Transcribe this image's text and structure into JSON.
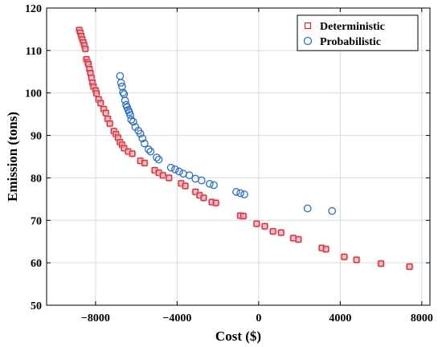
{
  "chart_data": {
    "type": "scatter",
    "title": "",
    "xlabel": "Cost ($)",
    "ylabel": "Emission (tons)",
    "xlim": [
      -10400,
      8400
    ],
    "ylim": [
      50,
      120
    ],
    "xticks": [
      -8000,
      -4000,
      0,
      4000,
      8000
    ],
    "xtick_labels": [
      "−8000",
      "−4000",
      "0",
      "4000",
      "8000"
    ],
    "yticks": [
      50,
      60,
      70,
      80,
      90,
      100,
      110,
      120
    ],
    "ytick_labels": [
      "50",
      "60",
      "70",
      "80",
      "90",
      "100",
      "110",
      "120"
    ],
    "grid": true,
    "legend_position": "top-right",
    "series": [
      {
        "name": "Deterministic",
        "marker": "square",
        "color": "#c0392b",
        "highlight": "#f4a6c6",
        "x": [
          -8800,
          -8750,
          -8700,
          -8650,
          -8600,
          -8550,
          -8500,
          -8450,
          -8400,
          -8350,
          -8300,
          -8250,
          -8200,
          -8150,
          -8100,
          -8000,
          -7950,
          -7850,
          -7750,
          -7600,
          -7500,
          -7400,
          -7300,
          -7100,
          -7000,
          -6900,
          -6800,
          -6700,
          -6600,
          -6400,
          -6200,
          -5800,
          -5600,
          -5100,
          -4900,
          -4700,
          -4400,
          -3800,
          -3600,
          -3100,
          -2900,
          -2700,
          -2300,
          -2100,
          -900,
          -750,
          -100,
          300,
          700,
          1100,
          1700,
          1950,
          3100,
          3300,
          4200,
          4800,
          6000,
          7400
        ],
        "y": [
          114.8,
          114.2,
          113.4,
          112.6,
          111.9,
          111.2,
          110.4,
          107.9,
          107.2,
          106.8,
          105.6,
          104.7,
          103.6,
          102.4,
          101.5,
          100.6,
          99.9,
          98.5,
          97.6,
          96.2,
          95.3,
          93.9,
          92.8,
          91.0,
          90.3,
          89.5,
          88.4,
          87.8,
          87.0,
          86.2,
          85.7,
          84.0,
          83.5,
          81.8,
          81.2,
          80.6,
          80.0,
          78.7,
          78.1,
          76.7,
          75.9,
          75.3,
          74.3,
          74.1,
          71.1,
          71.0,
          69.2,
          68.6,
          67.4,
          67.1,
          65.8,
          65.5,
          63.5,
          63.2,
          61.4,
          60.7,
          59.8,
          59.1
        ]
      },
      {
        "name": "Probabilistic",
        "marker": "circle",
        "color": "#2e6fb6",
        "x": [
          -6800,
          -6750,
          -6700,
          -6650,
          -6600,
          -6550,
          -6500,
          -6450,
          -6400,
          -6350,
          -6300,
          -6250,
          -6150,
          -6050,
          -5900,
          -5800,
          -5700,
          -5600,
          -5400,
          -5300,
          -5000,
          -4900,
          -4300,
          -4100,
          -3900,
          -3700,
          -3400,
          -3100,
          -2800,
          -2400,
          -2200,
          -1100,
          -900,
          -700,
          2400,
          3600
        ],
        "y": [
          104.0,
          102.4,
          101.5,
          100.1,
          99.7,
          98.2,
          97.2,
          96.6,
          96.0,
          95.5,
          94.8,
          93.7,
          93.2,
          92.0,
          91.1,
          90.4,
          89.3,
          88.1,
          86.7,
          86.2,
          84.8,
          84.3,
          82.4,
          82.0,
          81.5,
          81.0,
          80.6,
          79.8,
          79.4,
          78.6,
          78.3,
          76.7,
          76.4,
          76.1,
          72.8,
          72.2
        ]
      }
    ]
  }
}
